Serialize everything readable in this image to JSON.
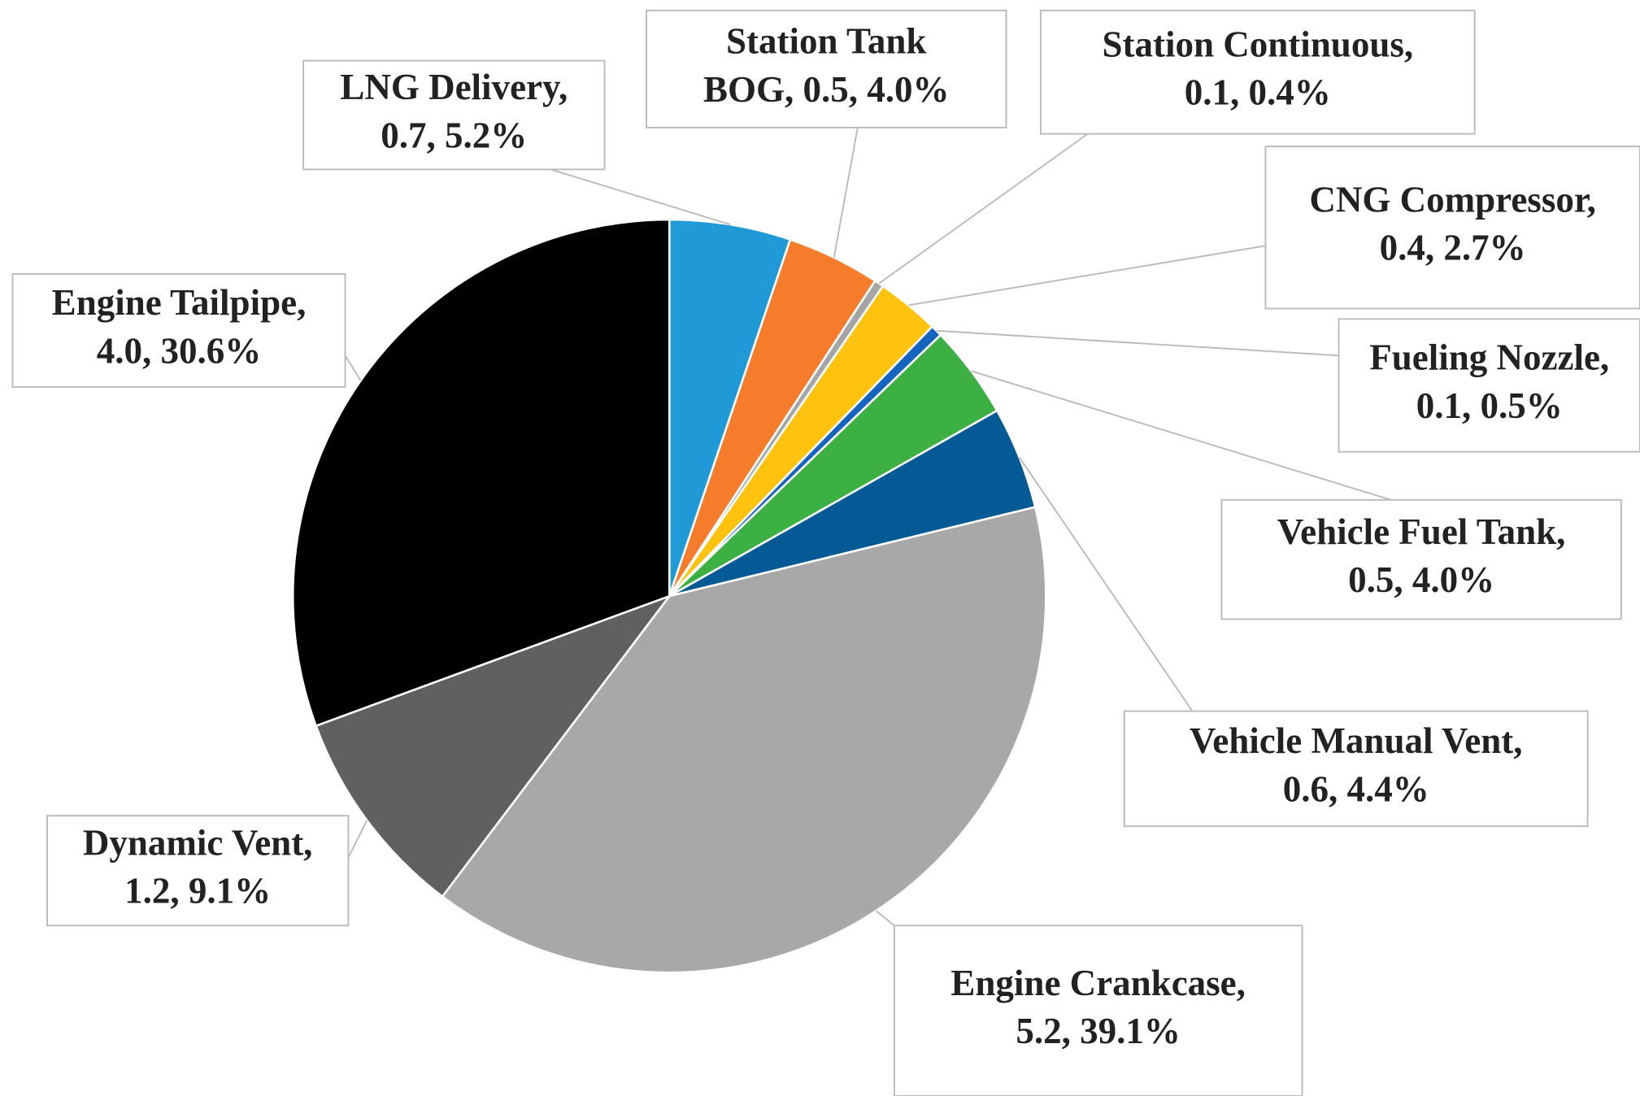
{
  "chart_data": {
    "type": "pie",
    "labels": [
      [
        "LNG Delivery,",
        "0.7, 5.2%"
      ],
      [
        "Station Tank",
        "BOG, 0.5, 4.0%"
      ],
      [
        "Station Continuous,",
        "0.1, 0.4%"
      ],
      [
        "CNG Compressor,",
        "0.4, 2.7%"
      ],
      [
        "Fueling Nozzle,",
        "0.1, 0.5%"
      ],
      [
        "Vehicle Fuel Tank,",
        "0.5, 4.0%"
      ],
      [
        "Vehicle Manual Vent,",
        "0.6, 4.4%"
      ],
      [
        "Engine Crankcase,",
        "5.2, 39.1%"
      ],
      [
        "Dynamic Vent,",
        "1.2, 9.1%"
      ],
      [
        "Engine Tailpipe,",
        "4.0, 30.6%"
      ]
    ],
    "amounts": [
      0.7,
      0.5,
      0.1,
      0.4,
      0.1,
      0.5,
      0.6,
      5.2,
      1.2,
      4.0
    ],
    "values": [
      5.2,
      4.0,
      0.4,
      2.7,
      0.5,
      4.0,
      4.4,
      39.1,
      9.1,
      30.6
    ],
    "colors": [
      "#1f9ad6",
      "#f47c2a",
      "#a5a5a5",
      "#ffc20e",
      "#1565c0",
      "#3cb043",
      "#035a94",
      "#a8a8a8",
      "#606060",
      "#000000"
    ]
  }
}
